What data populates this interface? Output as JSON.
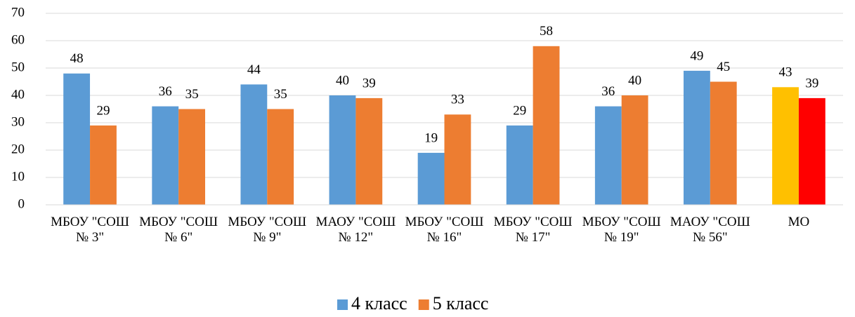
{
  "chart_data": {
    "type": "bar",
    "categories": [
      "МБОУ \"СОШ № 3\"",
      "МБОУ \"СОШ № 6\"",
      "МБОУ \"СОШ № 9\"",
      "МАОУ \"СОШ № 12\"",
      "МБОУ \"СОШ № 16\"",
      "МБОУ \"СОШ № 17\"",
      "МБОУ \"СОШ № 19\"",
      "МАОУ \"СОШ № 56\"",
      "МО"
    ],
    "series": [
      {
        "name": "4 класс",
        "color": "#5b9bd5",
        "colors": [
          "#5b9bd5",
          "#5b9bd5",
          "#5b9bd5",
          "#5b9bd5",
          "#5b9bd5",
          "#5b9bd5",
          "#5b9bd5",
          "#5b9bd5",
          "#ffc000"
        ],
        "values": [
          48,
          36,
          44,
          40,
          19,
          29,
          36,
          49,
          43
        ]
      },
      {
        "name": "5 класс",
        "color": "#ed7d31",
        "colors": [
          "#ed7d31",
          "#ed7d31",
          "#ed7d31",
          "#ed7d31",
          "#ed7d31",
          "#ed7d31",
          "#ed7d31",
          "#ed7d31",
          "#ff0000"
        ],
        "values": [
          29,
          35,
          35,
          39,
          33,
          58,
          40,
          45,
          39
        ]
      }
    ],
    "ylim": [
      0,
      70
    ],
    "yticks": [
      0,
      10,
      20,
      30,
      40,
      50,
      60,
      70
    ],
    "grid": true,
    "legend": "bottom"
  }
}
